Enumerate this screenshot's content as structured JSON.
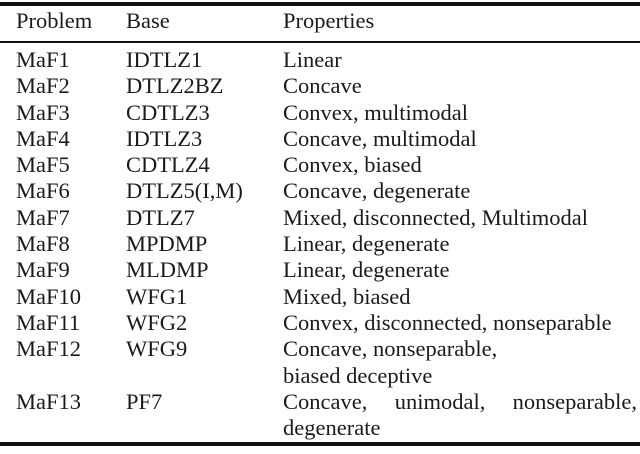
{
  "table": {
    "columns": [
      "Problem",
      "Base",
      "Properties"
    ],
    "rows": [
      {
        "problem": "MaF1",
        "base": "IDTLZ1",
        "properties": "Linear"
      },
      {
        "problem": "MaF2",
        "base": "DTLZ2BZ",
        "properties": "Concave"
      },
      {
        "problem": "MaF3",
        "base": "CDTLZ3",
        "properties": "Convex, multimodal"
      },
      {
        "problem": "MaF4",
        "base": "IDTLZ3",
        "properties": "Concave, multimodal"
      },
      {
        "problem": "MaF5",
        "base": "CDTLZ4",
        "properties": "Convex, biased"
      },
      {
        "problem": "MaF6",
        "base": "DTLZ5(I,M)",
        "properties": "Concave, degenerate"
      },
      {
        "problem": "MaF7",
        "base": "DTLZ7",
        "properties": "Mixed, disconnected, Multimodal"
      },
      {
        "problem": "MaF8",
        "base": "MPDMP",
        "properties": "Linear, degenerate"
      },
      {
        "problem": "MaF9",
        "base": "MLDMP",
        "properties": "Linear, degenerate"
      },
      {
        "problem": "MaF10",
        "base": "WFG1",
        "properties": "Mixed, biased"
      },
      {
        "problem": "MaF11",
        "base": "WFG2",
        "properties": "Convex, disconnected, nonseparable"
      },
      {
        "problem": "MaF12",
        "base": "WFG9",
        "properties": [
          "Concave, nonseparable,",
          "biased deceptive"
        ]
      },
      {
        "problem": "MaF13",
        "base": "PF7",
        "properties": "Concave, unimodal, nonseparable, degenerate",
        "justified": true
      }
    ]
  },
  "colors": {
    "text": "#1a1a1a",
    "rule": "#111111",
    "background": "#ffffff"
  }
}
